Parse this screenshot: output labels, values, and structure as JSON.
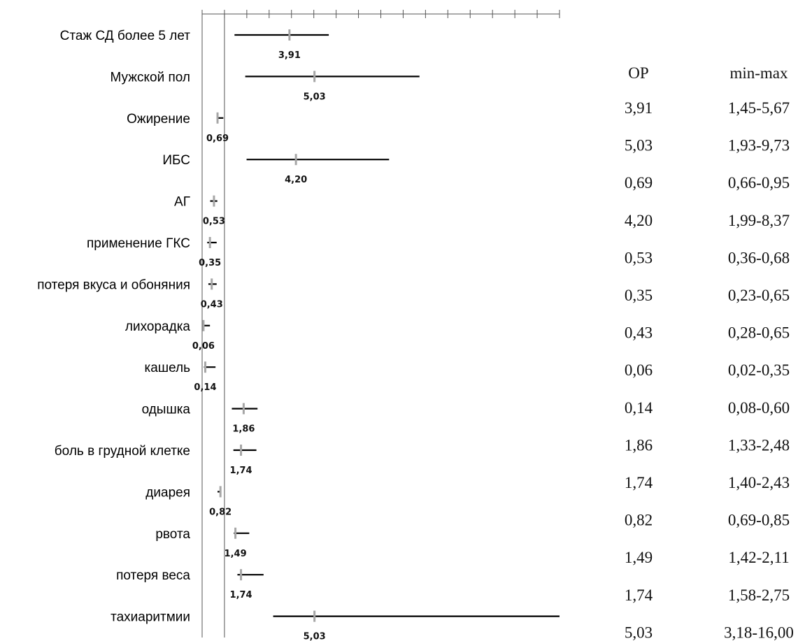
{
  "chart_data": {
    "type": "forest",
    "categories": [
      "Стаж СД более 5 лет",
      "Мужской пол",
      "Ожирение",
      "ИБС",
      "АГ",
      "применение ГКС",
      "потеря вкуса и обоняния",
      "лихорадка",
      "кашель",
      "одышка",
      "боль в грудной клетке",
      "диарея",
      "рвота",
      "потеря веса",
      "тахиаритмии"
    ],
    "values": [
      3.91,
      5.03,
      0.69,
      4.2,
      0.53,
      0.35,
      0.43,
      0.06,
      0.14,
      1.86,
      1.74,
      0.82,
      1.49,
      1.74,
      5.03
    ],
    "value_labels": [
      "3,91",
      "5,03",
      "0,69",
      "4,20",
      "0,53",
      "0,35",
      "0,43",
      "0,06",
      "0,14",
      "1,86",
      "1,74",
      "0,82",
      "1,49",
      "1,74",
      "5,03"
    ],
    "ci_low": [
      1.45,
      1.93,
      0.66,
      1.99,
      0.36,
      0.23,
      0.28,
      0.02,
      0.08,
      1.33,
      1.4,
      0.69,
      1.42,
      1.58,
      3.18
    ],
    "ci_high": [
      5.67,
      9.73,
      0.95,
      8.37,
      0.68,
      0.65,
      0.65,
      0.35,
      0.6,
      2.48,
      2.43,
      0.85,
      2.11,
      2.75,
      16.0
    ],
    "xlim": [
      0,
      16
    ],
    "x_ticks": [
      0,
      1,
      2,
      3,
      4,
      5,
      6,
      7,
      8,
      9,
      10,
      11,
      12,
      13,
      14,
      15,
      16
    ],
    "reference_line": 1,
    "title": "",
    "xlabel": "",
    "ylabel": ""
  },
  "table": {
    "headers": [
      "OP",
      "min-max"
    ],
    "rows": [
      [
        "3,91",
        "1,45-5,67"
      ],
      [
        "5,03",
        "1,93-9,73"
      ],
      [
        "0,69",
        "0,66-0,95"
      ],
      [
        "4,20",
        "1,99-8,37"
      ],
      [
        "0,53",
        "0,36-0,68"
      ],
      [
        "0,35",
        "0,23-0,65"
      ],
      [
        "0,43",
        "0,28-0,65"
      ],
      [
        "0,06",
        "0,02-0,35"
      ],
      [
        "0,14",
        "0,08-0,60"
      ],
      [
        "1,86",
        "1,33-2,48"
      ],
      [
        "1,74",
        "1,40-2,43"
      ],
      [
        "0,82",
        "0,69-0,85"
      ],
      [
        "1,49",
        "1,42-2,11"
      ],
      [
        "1,74",
        "1,58-2,75"
      ],
      [
        "5,03",
        "3,18-16,00"
      ]
    ]
  },
  "colors": {
    "ci_line": "#000000",
    "point_marker": "#a6a6a6",
    "axis": "#555555"
  }
}
